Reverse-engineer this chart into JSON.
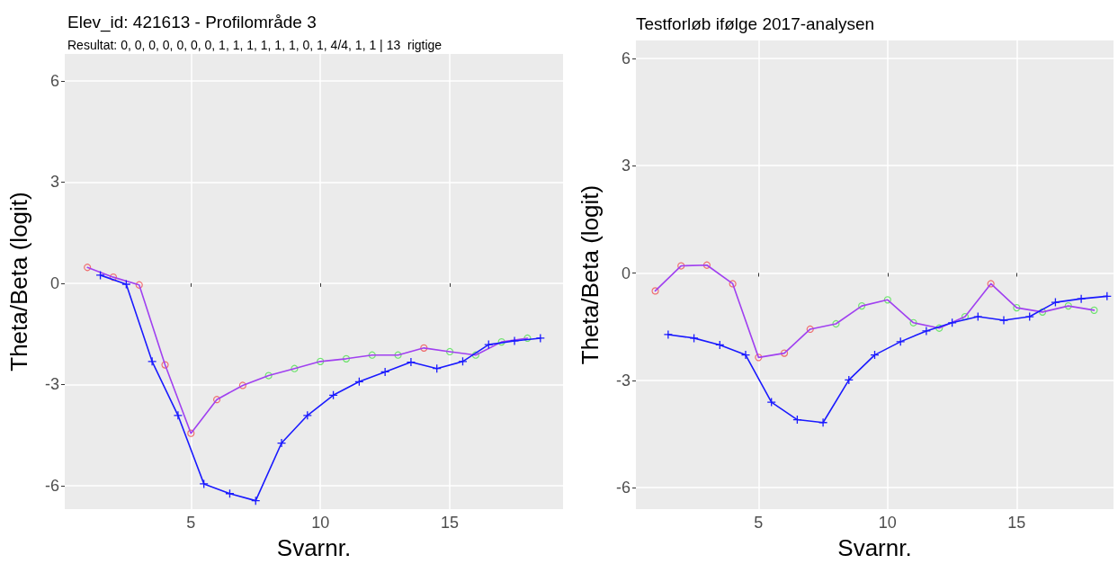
{
  "chart_data": [
    {
      "type": "line",
      "title": "Elev_id: 421613 - Profilområde 3",
      "subtitle": "Resultat: 0, 0, 0, 0, 0, 0, 0, 1, 1, 1, 1, 1, 1, 0, 1, 4/4, 1, 1 | 13  rigtige",
      "xlabel": "Svarnr.",
      "ylabel": "Theta/Beta (logit)",
      "xlim": [
        0.125,
        19.375
      ],
      "ylim": [
        -6.7,
        6.8
      ],
      "xticks": [
        5,
        10,
        15
      ],
      "yticks": [
        -6,
        -3,
        0,
        3,
        6
      ],
      "grid": true,
      "series": [
        {
          "type": "line",
          "color": "#a040f0",
          "marker": "none",
          "x": [
            1,
            2,
            3,
            4,
            5,
            6,
            7,
            8,
            9,
            10,
            11,
            12,
            13,
            14,
            15,
            16,
            17,
            18
          ],
          "values": [
            0.47,
            0.18,
            -0.05,
            -2.42,
            -4.45,
            -3.45,
            -3.03,
            -2.74,
            -2.53,
            -2.32,
            -2.24,
            -2.13,
            -2.13,
            -1.92,
            -2.03,
            -2.13,
            -1.74,
            -1.63
          ]
        },
        {
          "type": "scatter",
          "marker": "circle",
          "x": [
            1,
            2,
            3,
            4,
            5,
            6,
            7,
            8,
            9,
            10,
            11,
            12,
            13,
            14,
            15,
            16,
            17,
            18
          ],
          "values": [
            0.47,
            0.18,
            -0.05,
            -2.42,
            -4.45,
            -3.45,
            -3.03,
            -2.74,
            -2.53,
            -2.32,
            -2.24,
            -2.13,
            -2.13,
            -1.92,
            -2.03,
            -2.13,
            -1.74,
            -1.63
          ],
          "colors": [
            "#f05050",
            "#f05050",
            "#f05050",
            "#f05050",
            "#f05050",
            "#f05050",
            "#f05050",
            "#50e050",
            "#50e050",
            "#50e050",
            "#50e050",
            "#50e050",
            "#50e050",
            "#f05050",
            "#50e050",
            "#50e050",
            "#50e050",
            "#50e050"
          ]
        },
        {
          "type": "line",
          "color": "#1a1aff",
          "marker": "cross",
          "x": [
            1.5,
            2.5,
            3.5,
            4.5,
            5.5,
            6.5,
            7.5,
            8.5,
            9.5,
            10.5,
            11.5,
            12.5,
            13.5,
            14.5,
            15.5,
            16.5,
            17.5,
            18.5
          ],
          "values": [
            0.24,
            -0.03,
            -2.32,
            -3.92,
            -5.95,
            -6.24,
            -6.45,
            -4.74,
            -3.92,
            -3.32,
            -2.92,
            -2.63,
            -2.34,
            -2.53,
            -2.32,
            -1.82,
            -1.71,
            -1.63
          ]
        }
      ]
    },
    {
      "type": "line",
      "title": "Testforløb ifølge 2017-analysen",
      "xlabel": "Svarnr.",
      "ylabel": "Theta/Beta (logit)",
      "xlim": [
        0.25,
        18.75
      ],
      "ylim": [
        -6.6,
        6.5
      ],
      "xticks": [
        5,
        10,
        15
      ],
      "yticks": [
        -6,
        -3,
        0,
        3,
        6
      ],
      "grid": true,
      "series": [
        {
          "type": "line",
          "color": "#a040f0",
          "marker": "none",
          "x": [
            1,
            2,
            3,
            4,
            5,
            6,
            7,
            8,
            9,
            10,
            11,
            12,
            13,
            14,
            15,
            16,
            17,
            18
          ],
          "values": [
            -0.5,
            0.2,
            0.22,
            -0.3,
            -2.36,
            -2.24,
            -1.57,
            -1.42,
            -0.92,
            -0.75,
            -1.39,
            -1.54,
            -1.22,
            -0.3,
            -0.97,
            -1.09,
            -0.92,
            -1.04
          ]
        },
        {
          "type": "scatter",
          "marker": "circle",
          "x": [
            1,
            2,
            3,
            4,
            5,
            6,
            7,
            8,
            9,
            10,
            11,
            12,
            13,
            14,
            15,
            16,
            17,
            18
          ],
          "values": [
            -0.5,
            0.2,
            0.22,
            -0.3,
            -2.36,
            -2.24,
            -1.57,
            -1.42,
            -0.92,
            -0.75,
            -1.39,
            -1.54,
            -1.22,
            -0.3,
            -0.97,
            -1.09,
            -0.92,
            -1.04
          ],
          "colors": [
            "#f05050",
            "#f05050",
            "#f05050",
            "#f05050",
            "#f05050",
            "#f05050",
            "#f05050",
            "#50e050",
            "#50e050",
            "#50e050",
            "#50e050",
            "#50e050",
            "#50e050",
            "#f05050",
            "#50e050",
            "#50e050",
            "#50e050",
            "#50e050"
          ]
        },
        {
          "type": "line",
          "color": "#1a1aff",
          "marker": "cross",
          "x": [
            1.5,
            2.5,
            3.5,
            4.5,
            5.5,
            6.5,
            7.5,
            8.5,
            9.5,
            10.5,
            11.5,
            12.5,
            13.5,
            14.5,
            15.5,
            16.5,
            17.5,
            18.5
          ],
          "values": [
            -1.72,
            -1.82,
            -2.01,
            -2.29,
            -3.61,
            -4.1,
            -4.18,
            -2.99,
            -2.29,
            -1.92,
            -1.62,
            -1.39,
            -1.22,
            -1.32,
            -1.22,
            -0.82,
            -0.72,
            -0.65
          ]
        }
      ]
    }
  ]
}
